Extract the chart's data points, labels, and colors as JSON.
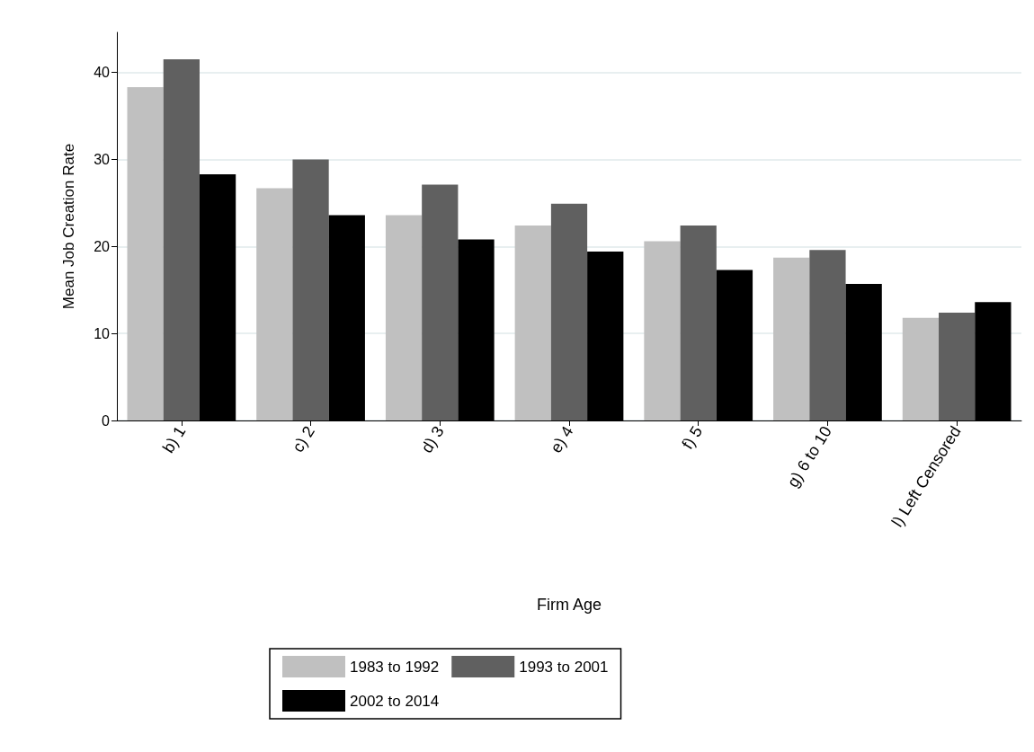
{
  "chart_data": {
    "type": "bar",
    "xlabel": "Firm Age",
    "ylabel": "Mean Job Creation Rate",
    "categories": [
      "b) 1",
      "c) 2",
      "d) 3",
      "e) 4",
      "f) 5",
      "g) 6 to 10",
      "l) Left Censored"
    ],
    "series": [
      {
        "name": "1983 to 1992",
        "color": "#c0c0c0",
        "values": [
          38.3,
          26.7,
          23.6,
          22.4,
          20.6,
          18.7,
          11.8
        ]
      },
      {
        "name": "1993 to 2001",
        "color": "#606060",
        "values": [
          41.5,
          30.0,
          27.1,
          24.9,
          22.4,
          19.6,
          12.4
        ]
      },
      {
        "name": "2002 to 2014",
        "color": "#000000",
        "values": [
          28.3,
          23.6,
          20.8,
          19.4,
          17.3,
          15.7,
          13.6
        ]
      }
    ],
    "ylim": [
      0,
      44.6
    ],
    "yticks": [
      0,
      10,
      20,
      30,
      40
    ],
    "grid": "y",
    "legend": "bottom"
  }
}
